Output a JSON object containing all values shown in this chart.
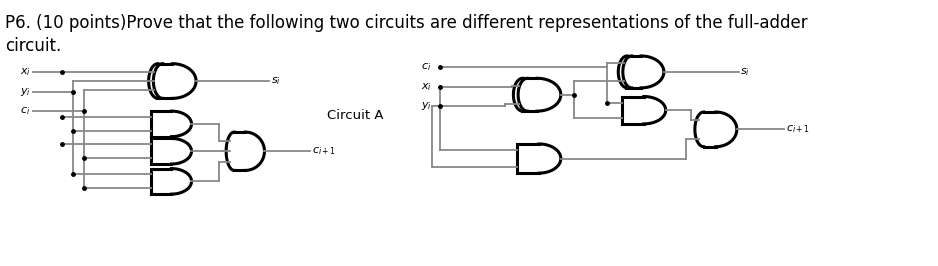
{
  "title_text": "P6. (10 points)Prove that the following two circuits are different representations of the full-adder\ncircuit.",
  "title_fontsize": 12,
  "background_color": "#ffffff",
  "circuit_a_label": "Circuit A",
  "text_color": "#000000",
  "gate_lw": 2.2,
  "wire_color": "#888888",
  "gate_color": "#000000",
  "wire_lw": 1.3
}
